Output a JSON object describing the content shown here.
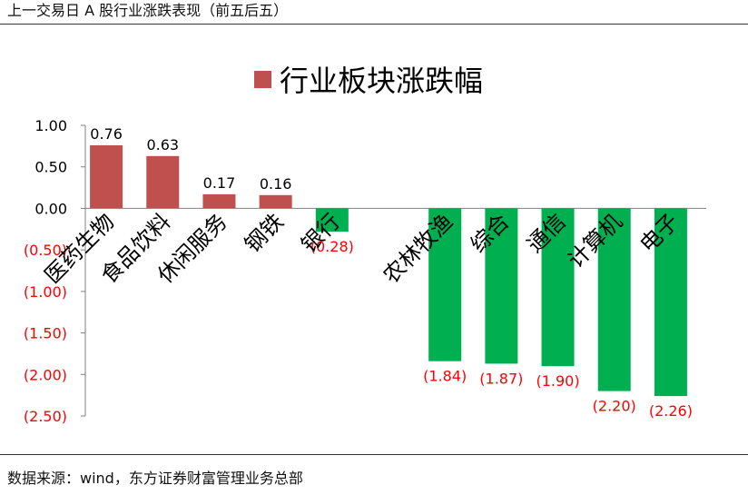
{
  "header": {
    "title": "上一交易日 A 股行业涨跌表现（前五后五）"
  },
  "footer": {
    "source": "数据来源：wind，东方证券财富管理业务总部"
  },
  "colors": {
    "positive": "#C0504D",
    "negative": "#00B050",
    "negative_label": "#FF0000",
    "axis": "#808080"
  },
  "chart_data": {
    "type": "bar",
    "title": "",
    "legend": {
      "position": "top-center",
      "entries": [
        "行业板块涨跌幅"
      ]
    },
    "categories": [
      "医药生物",
      "食品饮料",
      "休闲服务",
      "钢铁",
      "银行",
      "",
      "农林牧渔",
      "综合",
      "通信",
      "计算机",
      "电子"
    ],
    "series": [
      {
        "name": "行业板块涨跌幅",
        "values": [
          0.76,
          0.63,
          0.17,
          0.16,
          -0.28,
          null,
          -1.84,
          -1.87,
          -1.9,
          -2.2,
          -2.26
        ]
      }
    ],
    "data_labels": [
      "0.76",
      "0.63",
      "0.17",
      "0.16",
      "(0.28)",
      "",
      "(1.84)",
      "(1.87)",
      "(1.90)",
      "(2.20)",
      "(2.26)"
    ],
    "ylim": [
      -2.5,
      1.0
    ],
    "yticks": [
      {
        "value": 1.0,
        "label": "1.00"
      },
      {
        "value": 0.5,
        "label": "0.50"
      },
      {
        "value": 0.0,
        "label": "0.00"
      },
      {
        "value": -0.5,
        "label": "(0.50)"
      },
      {
        "value": -1.0,
        "label": "(1.00)"
      },
      {
        "value": -1.5,
        "label": "(1.50)"
      },
      {
        "value": -2.0,
        "label": "(2.00)"
      },
      {
        "value": -2.5,
        "label": "(2.50)"
      }
    ],
    "grid": false,
    "xlabel": "",
    "ylabel": ""
  }
}
